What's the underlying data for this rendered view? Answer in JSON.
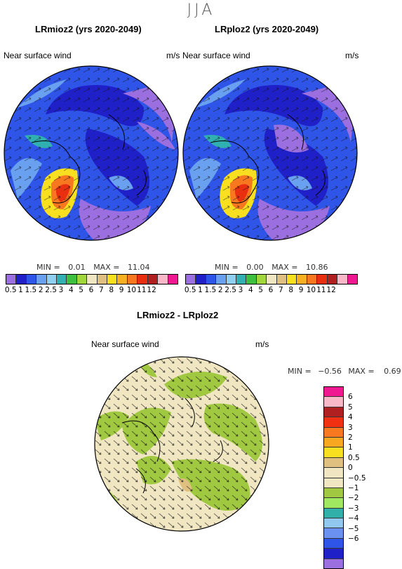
{
  "season": "JJA",
  "panels": [
    {
      "title": "LRmioz2 (yrs 2020-2049)",
      "label": "Near surface wind",
      "units": "m/s",
      "min_label": "MIN =",
      "min": "0.01",
      "max_label": "MAX =",
      "max": "11.04"
    },
    {
      "title": "LRploz2 (yrs 2020-2049)",
      "label": "Near surface wind",
      "units": "m/s",
      "min_label": "MIN =",
      "min": "0.00",
      "max_label": "MAX =",
      "max": "10.86"
    }
  ],
  "diff_panel": {
    "title": "LRmioz2 - LRploz2",
    "label": "Near surface wind",
    "units": "m/s",
    "min_label": "MIN =",
    "min": "−0.56",
    "max_label": "MAX =",
    "max": "0.69"
  },
  "abs_colorbar": {
    "colors": [
      "#9b6fe0",
      "#2020c8",
      "#2f55e8",
      "#6aa0f0",
      "#8fd0f0",
      "#30b0b0",
      "#3fbf3f",
      "#a0d83c",
      "#f0e6c2",
      "#e0c080",
      "#f8e020",
      "#f8b020",
      "#f87820",
      "#e83010",
      "#b02020",
      "#f8b8c8",
      "#f01890"
    ],
    "ticks": [
      "0.5",
      "1",
      "1.5",
      "2",
      "2.5",
      "3",
      "4",
      "5",
      "6",
      "7",
      "8",
      "9",
      "10",
      "11",
      "12"
    ]
  },
  "diff_colorbar": {
    "colors": [
      "#f01890",
      "#f8b8c8",
      "#b02020",
      "#f03010",
      "#f87820",
      "#f8a820",
      "#f8e020",
      "#e0c080",
      "#f0e6c2",
      "#f0e6c2",
      "#a0c840",
      "#a0e860",
      "#30b0a8",
      "#90c8f0",
      "#6a90f0",
      "#2f55e8",
      "#2020c8",
      "#9b6fe0"
    ],
    "ticks": [
      "6",
      "5",
      "4",
      "3",
      "2",
      "1",
      "0.5",
      "0",
      "−0.5",
      "−1",
      "−2",
      "−3",
      "−4",
      "−5",
      "−6"
    ]
  }
}
